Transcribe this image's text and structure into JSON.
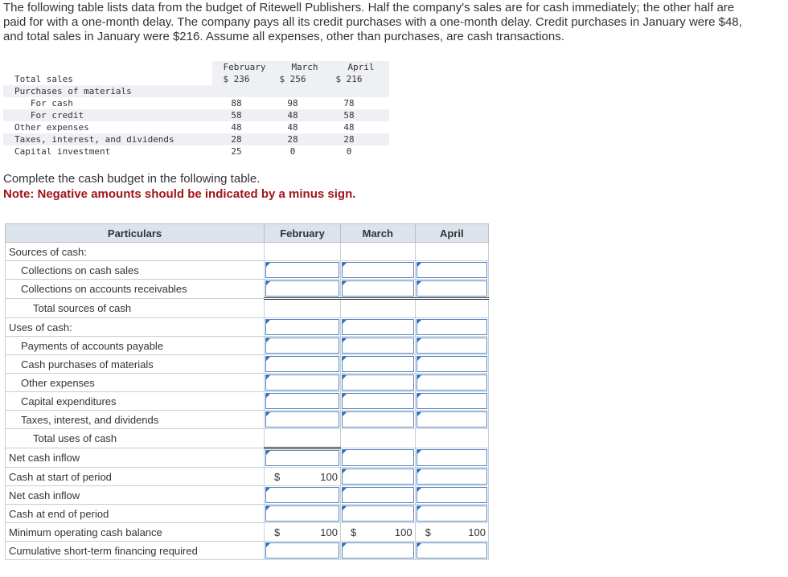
{
  "problem_text": "The following table lists data from the budget of Ritewell Publishers. Half the company's sales are for cash immediately; the other half are paid for with a one-month delay. The company pays all its credit purchases with a one-month delay. Credit purchases in January were $48, and total sales in January were $216. Assume all expenses, other than purchases, are cash transactions.",
  "data_table": {
    "months": [
      "February",
      "March",
      "April"
    ],
    "rows": [
      {
        "label": "Total sales",
        "values": [
          "$ 236",
          "$ 256",
          "$ 216"
        ]
      },
      {
        "label": "Purchases of materials",
        "values": [
          "",
          "",
          ""
        ]
      },
      {
        "label": "   For cash",
        "values": [
          "88",
          "98",
          "78"
        ]
      },
      {
        "label": "   For credit",
        "values": [
          "58",
          "48",
          "58"
        ]
      },
      {
        "label": "Other expenses",
        "values": [
          "48",
          "48",
          "48"
        ]
      },
      {
        "label": "Taxes, interest, and dividends",
        "values": [
          "28",
          "28",
          "28"
        ]
      },
      {
        "label": "Capital investment",
        "values": [
          "25",
          "0",
          "0"
        ]
      }
    ]
  },
  "instruction": "Complete the cash budget in the following table.",
  "note": "Note: Negative amounts should be indicated by a minus sign.",
  "budget": {
    "headers": [
      "Particulars",
      "February",
      "March",
      "April"
    ],
    "rows": [
      {
        "label": "Sources of cash:",
        "indent": 0,
        "cells": [
          "none",
          "none",
          "none"
        ]
      },
      {
        "label": "Collections on cash sales",
        "indent": 1,
        "cells": [
          "input",
          "input",
          "input"
        ]
      },
      {
        "label": "Collections on accounts receivables",
        "indent": 1,
        "cells": [
          "input",
          "input",
          "input"
        ]
      },
      {
        "label": "Total sources of cash",
        "indent": 2,
        "cells": [
          "dbl",
          "dbl",
          "dbl"
        ]
      },
      {
        "label": "Uses of cash:",
        "indent": 0,
        "cells": [
          "input",
          "input",
          "input"
        ]
      },
      {
        "label": "Payments of accounts payable",
        "indent": 1,
        "cells": [
          "input",
          "input",
          "input"
        ]
      },
      {
        "label": "Cash purchases of materials",
        "indent": 1,
        "cells": [
          "input",
          "input",
          "input"
        ]
      },
      {
        "label": "Other expenses",
        "indent": 1,
        "cells": [
          "input",
          "input",
          "input"
        ]
      },
      {
        "label": "Capital expenditures",
        "indent": 1,
        "cells": [
          "input",
          "input",
          "input"
        ]
      },
      {
        "label": "Taxes, interest, and dividends",
        "indent": 1,
        "cells": [
          "input",
          "input",
          "input"
        ]
      },
      {
        "label": "Total uses of cash",
        "indent": 2,
        "cells": [
          "none",
          "none",
          "none"
        ]
      },
      {
        "label": "Net cash inflow",
        "indent": 0,
        "cells": [
          "dblinput",
          "input",
          "input"
        ]
      },
      {
        "label": "Cash at start of period",
        "indent": 0,
        "cells": [
          "$|100",
          "input",
          "input"
        ]
      },
      {
        "label": "Net cash inflow",
        "indent": 0,
        "cells": [
          "input",
          "input",
          "input"
        ]
      },
      {
        "label": "Cash at end of period",
        "indent": 0,
        "cells": [
          "input",
          "input",
          "input"
        ]
      },
      {
        "label": "Minimum operating cash balance",
        "indent": 0,
        "cells": [
          "$|100",
          "$|100",
          "$|100"
        ]
      },
      {
        "label": "Cumulative short-term financing required",
        "indent": 0,
        "cells": [
          "input",
          "input",
          "input"
        ]
      }
    ]
  }
}
